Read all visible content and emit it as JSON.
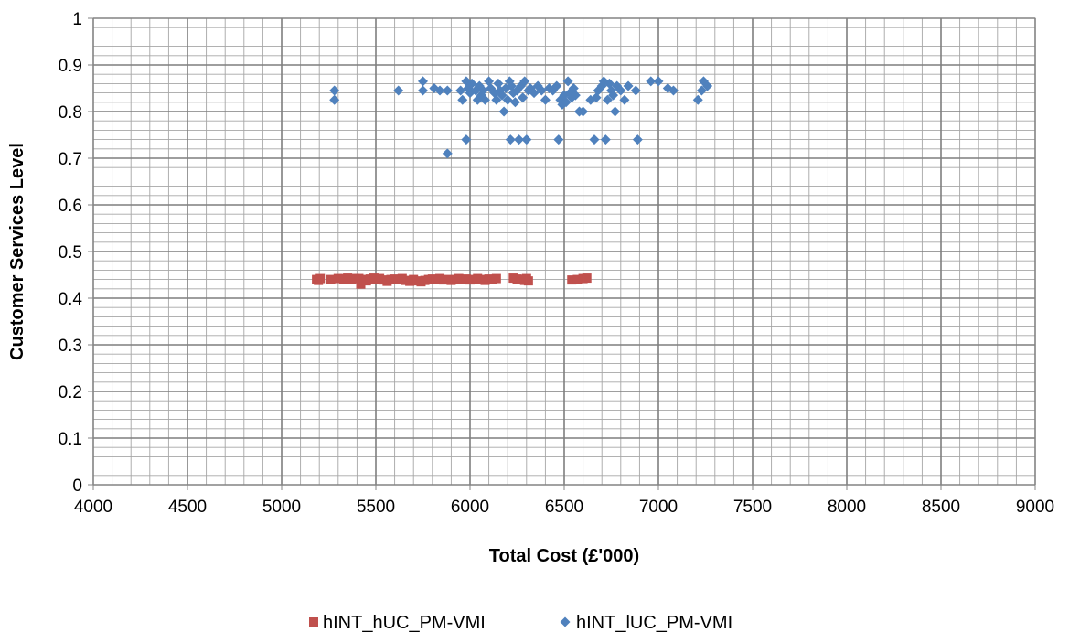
{
  "chart_data": {
    "type": "scatter",
    "title": "",
    "xlabel": "Total Cost (£'000)",
    "ylabel": "Customer Services Level",
    "xlim": [
      4000,
      9000
    ],
    "ylim": [
      0,
      1
    ],
    "x_ticks": [
      "4000",
      "4500",
      "5000",
      "5500",
      "6000",
      "6500",
      "7000",
      "7500",
      "8000",
      "8500",
      "9000"
    ],
    "y_ticks": [
      "0",
      "0.1",
      "0.2",
      "0.3",
      "0.4",
      "0.5",
      "0.6",
      "0.7",
      "0.8",
      "0.9",
      "1"
    ],
    "grid": "major and minor",
    "legend_position": "bottom",
    "series": [
      {
        "name": "hINT_hUC_PM-VMI",
        "marker": "square",
        "color": "#C0504D",
        "points": [
          [
            5185,
            0.44
          ],
          [
            5195,
            0.438
          ],
          [
            5205,
            0.442
          ],
          [
            5260,
            0.44
          ],
          [
            5300,
            0.442
          ],
          [
            5330,
            0.441
          ],
          [
            5350,
            0.443
          ],
          [
            5370,
            0.44
          ],
          [
            5390,
            0.442
          ],
          [
            5410,
            0.442
          ],
          [
            5420,
            0.43
          ],
          [
            5440,
            0.44
          ],
          [
            5450,
            0.437
          ],
          [
            5470,
            0.441
          ],
          [
            5490,
            0.443
          ],
          [
            5500,
            0.44
          ],
          [
            5520,
            0.442
          ],
          [
            5540,
            0.439
          ],
          [
            5560,
            0.436
          ],
          [
            5580,
            0.44
          ],
          [
            5600,
            0.441
          ],
          [
            5620,
            0.44
          ],
          [
            5640,
            0.442
          ],
          [
            5660,
            0.438
          ],
          [
            5680,
            0.436
          ],
          [
            5700,
            0.44
          ],
          [
            5720,
            0.437
          ],
          [
            5740,
            0.435
          ],
          [
            5760,
            0.438
          ],
          [
            5780,
            0.44
          ],
          [
            5800,
            0.441
          ],
          [
            5820,
            0.44
          ],
          [
            5840,
            0.442
          ],
          [
            5860,
            0.439
          ],
          [
            5880,
            0.44
          ],
          [
            5900,
            0.438
          ],
          [
            5920,
            0.44
          ],
          [
            5940,
            0.442
          ],
          [
            5960,
            0.44
          ],
          [
            5980,
            0.441
          ],
          [
            6000,
            0.439
          ],
          [
            6020,
            0.44
          ],
          [
            6040,
            0.442
          ],
          [
            6060,
            0.44
          ],
          [
            6080,
            0.438
          ],
          [
            6100,
            0.441
          ],
          [
            6120,
            0.44
          ],
          [
            6140,
            0.442
          ],
          [
            6230,
            0.443
          ],
          [
            6250,
            0.441
          ],
          [
            6270,
            0.44
          ],
          [
            6290,
            0.438
          ],
          [
            6300,
            0.442
          ],
          [
            6310,
            0.437
          ],
          [
            6540,
            0.439
          ],
          [
            6570,
            0.44
          ],
          [
            6600,
            0.442
          ],
          [
            6620,
            0.443
          ]
        ]
      },
      {
        "name": "hINT_lUC_PM-VMI",
        "marker": "diamond",
        "color": "#4F81BD",
        "points": [
          [
            5280,
            0.845
          ],
          [
            5280,
            0.825
          ],
          [
            5620,
            0.845
          ],
          [
            5750,
            0.865
          ],
          [
            5750,
            0.845
          ],
          [
            5810,
            0.85
          ],
          [
            5840,
            0.845
          ],
          [
            5880,
            0.845
          ],
          [
            5880,
            0.71
          ],
          [
            5950,
            0.845
          ],
          [
            5960,
            0.825
          ],
          [
            5980,
            0.865
          ],
          [
            5980,
            0.74
          ],
          [
            5990,
            0.85
          ],
          [
            6000,
            0.84
          ],
          [
            6010,
            0.86
          ],
          [
            6030,
            0.845
          ],
          [
            6040,
            0.825
          ],
          [
            6050,
            0.855
          ],
          [
            6060,
            0.835
          ],
          [
            6070,
            0.845
          ],
          [
            6080,
            0.825
          ],
          [
            6100,
            0.865
          ],
          [
            6110,
            0.85
          ],
          [
            6130,
            0.84
          ],
          [
            6140,
            0.825
          ],
          [
            6150,
            0.86
          ],
          [
            6160,
            0.845
          ],
          [
            6170,
            0.835
          ],
          [
            6180,
            0.8
          ],
          [
            6190,
            0.85
          ],
          [
            6200,
            0.825
          ],
          [
            6210,
            0.865
          ],
          [
            6215,
            0.74
          ],
          [
            6220,
            0.855
          ],
          [
            6230,
            0.84
          ],
          [
            6240,
            0.82
          ],
          [
            6250,
            0.845
          ],
          [
            6260,
            0.74
          ],
          [
            6270,
            0.855
          ],
          [
            6280,
            0.83
          ],
          [
            6290,
            0.865
          ],
          [
            6300,
            0.74
          ],
          [
            6310,
            0.845
          ],
          [
            6320,
            0.85
          ],
          [
            6340,
            0.84
          ],
          [
            6360,
            0.855
          ],
          [
            6380,
            0.845
          ],
          [
            6400,
            0.825
          ],
          [
            6420,
            0.85
          ],
          [
            6440,
            0.845
          ],
          [
            6460,
            0.855
          ],
          [
            6470,
            0.74
          ],
          [
            6480,
            0.825
          ],
          [
            6490,
            0.815
          ],
          [
            6500,
            0.835
          ],
          [
            6510,
            0.82
          ],
          [
            6520,
            0.865
          ],
          [
            6530,
            0.84
          ],
          [
            6540,
            0.83
          ],
          [
            6550,
            0.85
          ],
          [
            6560,
            0.835
          ],
          [
            6580,
            0.8
          ],
          [
            6600,
            0.8
          ],
          [
            6640,
            0.825
          ],
          [
            6660,
            0.74
          ],
          [
            6670,
            0.83
          ],
          [
            6680,
            0.845
          ],
          [
            6700,
            0.855
          ],
          [
            6710,
            0.865
          ],
          [
            6720,
            0.74
          ],
          [
            6730,
            0.825
          ],
          [
            6740,
            0.86
          ],
          [
            6750,
            0.845
          ],
          [
            6760,
            0.835
          ],
          [
            6770,
            0.8
          ],
          [
            6780,
            0.855
          ],
          [
            6800,
            0.845
          ],
          [
            6820,
            0.825
          ],
          [
            6840,
            0.855
          ],
          [
            6880,
            0.845
          ],
          [
            6890,
            0.74
          ],
          [
            6960,
            0.865
          ],
          [
            7000,
            0.865
          ],
          [
            7050,
            0.85
          ],
          [
            7080,
            0.845
          ],
          [
            7210,
            0.825
          ],
          [
            7230,
            0.845
          ],
          [
            7240,
            0.865
          ],
          [
            7260,
            0.855
          ]
        ]
      }
    ]
  }
}
